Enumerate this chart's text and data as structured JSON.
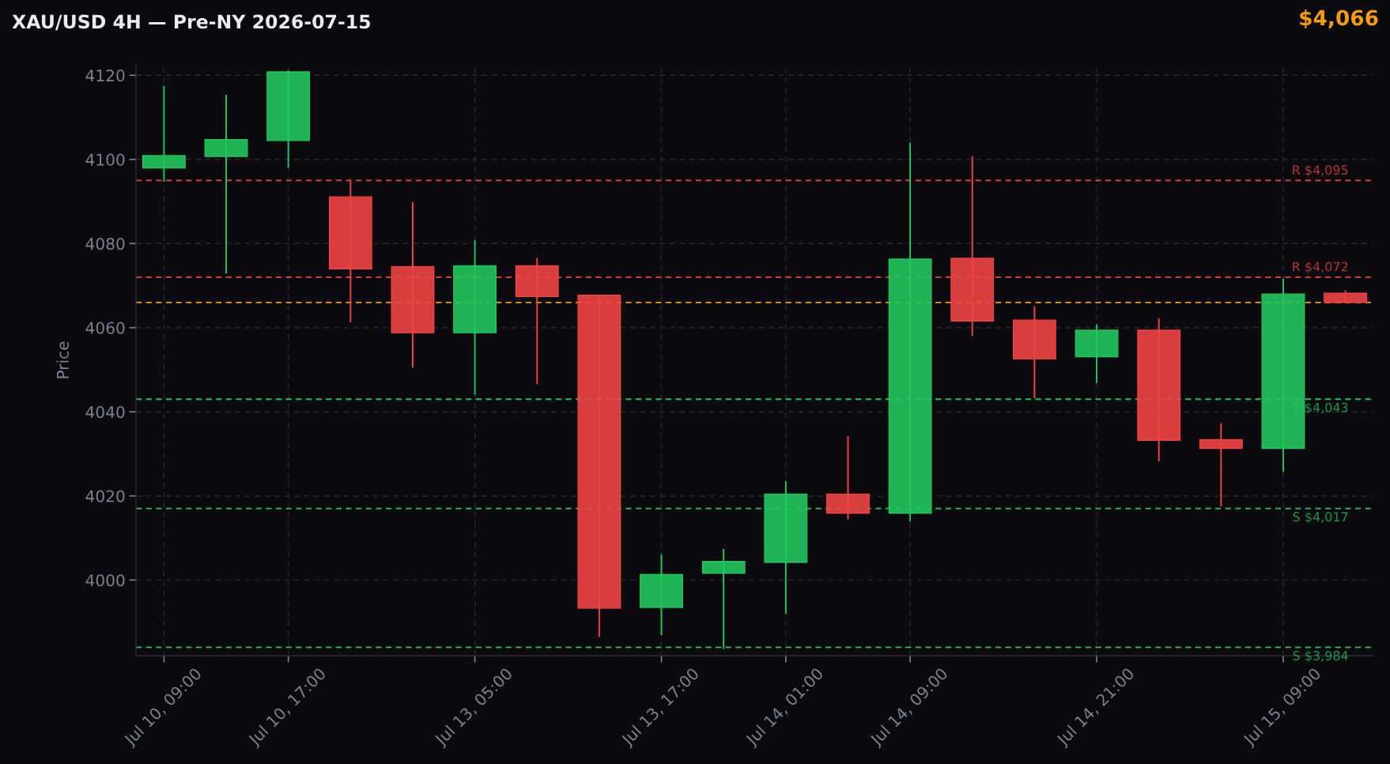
{
  "chart_data": {
    "type": "candlestick",
    "title": "XAU/USD 4H — Pre-NY 2026-07-15",
    "ylabel": "Price",
    "categories": [
      "Jul 10, 09:00",
      null,
      "Jul 10, 17:00",
      null,
      null,
      "Jul 13, 05:00",
      null,
      null,
      "Jul 13, 17:00",
      null,
      "Jul 14, 01:00",
      null,
      "Jul 14, 09:00",
      null,
      null,
      "Jul 14, 21:00",
      null,
      null,
      "Jul 15, 09:00",
      null
    ],
    "ohlc": [
      [
        4098.0,
        4117.5,
        4094.7,
        4100.9
      ],
      [
        4100.7,
        4115.4,
        4072.9,
        4104.7
      ],
      [
        4104.5,
        4121.2,
        4098.0,
        4120.8
      ],
      [
        4091.1,
        4094.8,
        4061.3,
        4074.0
      ],
      [
        4074.5,
        4089.9,
        4050.5,
        4058.8
      ],
      [
        4058.8,
        4080.8,
        4044.1,
        4074.7
      ],
      [
        4074.7,
        4076.6,
        4046.6,
        4067.4
      ],
      [
        4067.7,
        4067.9,
        3986.5,
        3993.3
      ],
      [
        3993.5,
        4006.1,
        3986.9,
        4001.3
      ],
      [
        4001.6,
        4007.4,
        3983.6,
        4004.4
      ],
      [
        4004.2,
        4023.5,
        3992.0,
        4020.4
      ],
      [
        4020.4,
        4034.2,
        4014.4,
        4015.9
      ],
      [
        4015.9,
        4104.0,
        4013.9,
        4076.3
      ],
      [
        4076.5,
        4100.7,
        4058.0,
        4061.6
      ],
      [
        4061.8,
        4065.1,
        4043.2,
        4052.6
      ],
      [
        4053.1,
        4060.8,
        4046.8,
        4059.4
      ],
      [
        4059.4,
        4062.2,
        4028.2,
        4033.2
      ],
      [
        4033.4,
        4037.3,
        4017.5,
        4031.3
      ],
      [
        4031.3,
        4071.7,
        4025.7,
        4068.0
      ],
      [
        4068.2,
        4068.9,
        4066.0,
        4066.0
      ]
    ],
    "colors": [
      "#22c55e",
      "#22c55e",
      "#22c55e",
      "#ef4444",
      "#ef4444",
      "#22c55e",
      "#ef4444",
      "#ef4444",
      "#22c55e",
      "#22c55e",
      "#22c55e",
      "#ef4444",
      "#22c55e",
      "#ef4444",
      "#ef4444",
      "#22c55e",
      "#ef4444",
      "#ef4444",
      "#22c55e",
      "#ef4444"
    ],
    "ylim": [
      3982,
      4122.5
    ],
    "yticks": [
      4000,
      4020,
      4040,
      4060,
      4080,
      4100,
      4120
    ],
    "ref_lines": [
      {
        "axis": "y",
        "value": 4095,
        "label": "R $4,095",
        "color": "#ef4444",
        "line_style": "dashed"
      },
      {
        "axis": "y",
        "value": 4072,
        "label": "R $4,072",
        "color": "#ef4444",
        "line_style": "dashed"
      },
      {
        "axis": "y",
        "value": 4066,
        "color": "#f59e0b",
        "line_style": "dashed"
      },
      {
        "axis": "y",
        "value": 4043,
        "label": "S $4,043",
        "color": "#22c55e",
        "line_style": "dashed"
      },
      {
        "axis": "y",
        "value": 4017,
        "label": "S $4,017",
        "color": "#22c55e",
        "line_style": "dashed"
      },
      {
        "axis": "y",
        "value": 3984,
        "label": "S $3,984",
        "color": "#22c55e",
        "line_style": "dashed"
      }
    ],
    "annotations": [
      "$4,066"
    ],
    "grid": true
  }
}
